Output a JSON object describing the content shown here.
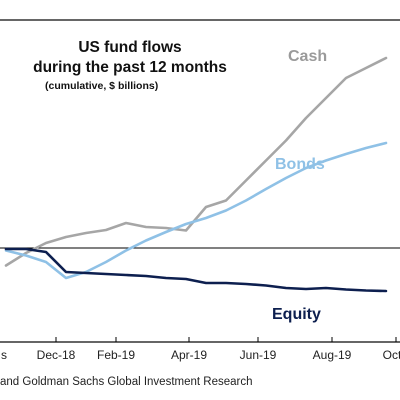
{
  "chart_data": {
    "type": "line",
    "title_line1": "US fund flows",
    "title_line2": "during the past 12 months",
    "subtitle": "(cumulative, $ billions)",
    "xlabel": "",
    "ylabel": "",
    "x_ticks": [
      "s",
      "Dec-18",
      "Feb-19",
      "Apr-19",
      "Jun-19",
      "Aug-19",
      "Oct"
    ],
    "grid": false,
    "series": [
      {
        "name": "Cash",
        "color": "#a6a6a6",
        "x": [
          0,
          0.5,
          1,
          1.5,
          2,
          2.5,
          3,
          3.5,
          4,
          4.5,
          5,
          5.5,
          6,
          6.5,
          7,
          7.5,
          8,
          8.5,
          9,
          9.5
        ],
        "values": [
          -35,
          -10,
          10,
          22,
          30,
          36,
          50,
          42,
          40,
          35,
          82,
          95,
          135,
          175,
          215,
          260,
          300,
          340,
          360,
          380
        ]
      },
      {
        "name": "Bonds",
        "color": "#8fc1e6",
        "x": [
          0,
          0.5,
          1,
          1.5,
          2,
          2.5,
          3,
          3.5,
          4,
          4.5,
          5,
          5.5,
          6,
          6.5,
          7,
          7.5,
          8,
          8.5,
          9,
          9.5
        ],
        "values": [
          -5,
          -15,
          -28,
          -60,
          -48,
          -28,
          -5,
          15,
          32,
          48,
          60,
          75,
          95,
          118,
          140,
          160,
          175,
          188,
          200,
          210
        ]
      },
      {
        "name": "Equity",
        "color": "#0d1f4f",
        "x": [
          0,
          0.5,
          1,
          1.5,
          2,
          2.5,
          3,
          3.5,
          4,
          4.5,
          5,
          5.5,
          6,
          6.5,
          7,
          7.5,
          8,
          8.5,
          9,
          9.5
        ],
        "values": [
          -2,
          -2,
          -8,
          -48,
          -50,
          -52,
          -54,
          -56,
          -60,
          -62,
          -70,
          -70,
          -72,
          -75,
          -80,
          -82,
          -80,
          -83,
          -85,
          -86
        ]
      }
    ],
    "zero_line": true,
    "source_text": "and Goldman Sachs Global Investment Research"
  }
}
